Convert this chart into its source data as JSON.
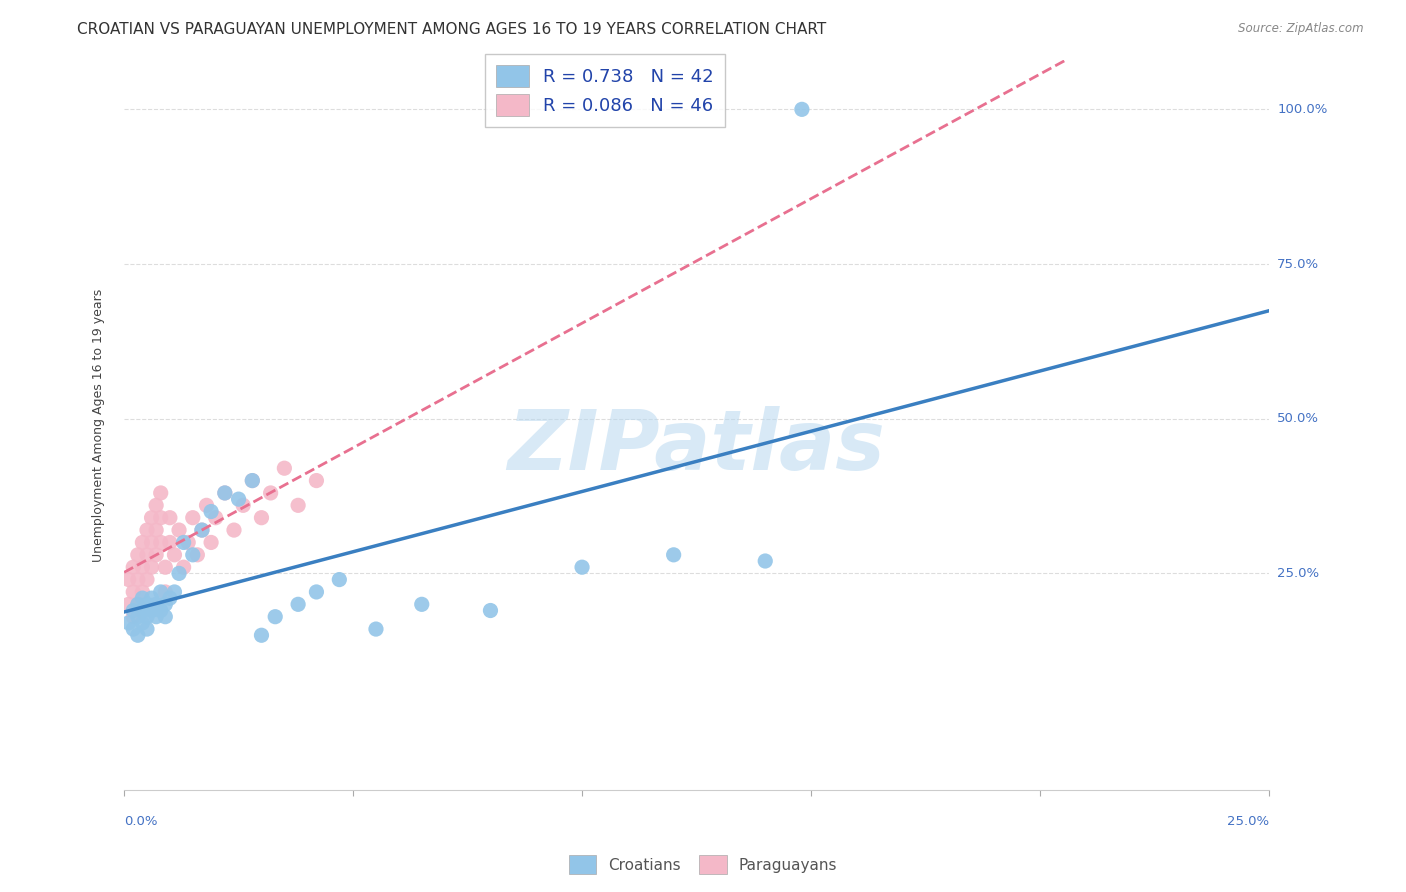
{
  "title": "CROATIAN VS PARAGUAYAN UNEMPLOYMENT AMONG AGES 16 TO 19 YEARS CORRELATION CHART",
  "source": "Source: ZipAtlas.com",
  "ylabel": "Unemployment Among Ages 16 to 19 years",
  "ytick_values": [
    0.25,
    0.5,
    0.75,
    1.0
  ],
  "ytick_labels": [
    "25.0%",
    "50.0%",
    "75.0%",
    "100.0%"
  ],
  "xlim": [
    0.0,
    0.25
  ],
  "ylim": [
    -0.1,
    1.08
  ],
  "watermark": "ZIPatlas",
  "croatian_color": "#92c5e8",
  "paraguayan_color": "#f4b8c8",
  "trendline_croatian_color": "#3a7fc1",
  "trendline_paraguayan_color": "#e87090",
  "background_color": "#ffffff",
  "grid_color": "#dddddd",
  "croatian_x": [
    0.001,
    0.002,
    0.002,
    0.003,
    0.003,
    0.003,
    0.004,
    0.004,
    0.004,
    0.005,
    0.005,
    0.005,
    0.006,
    0.006,
    0.007,
    0.007,
    0.008,
    0.008,
    0.009,
    0.009,
    0.01,
    0.011,
    0.012,
    0.013,
    0.015,
    0.017,
    0.019,
    0.022,
    0.025,
    0.028,
    0.03,
    0.033,
    0.038,
    0.042,
    0.047,
    0.055,
    0.065,
    0.08,
    0.1,
    0.12,
    0.14,
    0.148
  ],
  "croatian_y": [
    0.17,
    0.16,
    0.19,
    0.18,
    0.15,
    0.2,
    0.17,
    0.19,
    0.21,
    0.18,
    0.2,
    0.16,
    0.19,
    0.21,
    0.18,
    0.2,
    0.19,
    0.22,
    0.2,
    0.18,
    0.21,
    0.22,
    0.25,
    0.3,
    0.28,
    0.32,
    0.35,
    0.38,
    0.37,
    0.4,
    0.15,
    0.18,
    0.2,
    0.22,
    0.24,
    0.16,
    0.2,
    0.19,
    0.26,
    0.28,
    0.27,
    1.0
  ],
  "paraguayan_x": [
    0.001,
    0.001,
    0.002,
    0.002,
    0.002,
    0.003,
    0.003,
    0.003,
    0.004,
    0.004,
    0.004,
    0.005,
    0.005,
    0.005,
    0.006,
    0.006,
    0.006,
    0.007,
    0.007,
    0.007,
    0.008,
    0.008,
    0.008,
    0.009,
    0.009,
    0.01,
    0.01,
    0.011,
    0.012,
    0.013,
    0.014,
    0.015,
    0.016,
    0.017,
    0.018,
    0.019,
    0.02,
    0.022,
    0.024,
    0.026,
    0.028,
    0.03,
    0.032,
    0.035,
    0.038,
    0.042
  ],
  "paraguayan_y": [
    0.2,
    0.24,
    0.22,
    0.26,
    0.18,
    0.28,
    0.24,
    0.2,
    0.3,
    0.26,
    0.22,
    0.32,
    0.28,
    0.24,
    0.34,
    0.3,
    0.26,
    0.36,
    0.32,
    0.28,
    0.38,
    0.34,
    0.3,
    0.22,
    0.26,
    0.3,
    0.34,
    0.28,
    0.32,
    0.26,
    0.3,
    0.34,
    0.28,
    0.32,
    0.36,
    0.3,
    0.34,
    0.38,
    0.32,
    0.36,
    0.4,
    0.34,
    0.38,
    0.42,
    0.36,
    0.4
  ],
  "title_fontsize": 11,
  "axis_label_fontsize": 9,
  "tick_fontsize": 9.5,
  "legend_fontsize": 13,
  "source_fontsize": 8.5
}
